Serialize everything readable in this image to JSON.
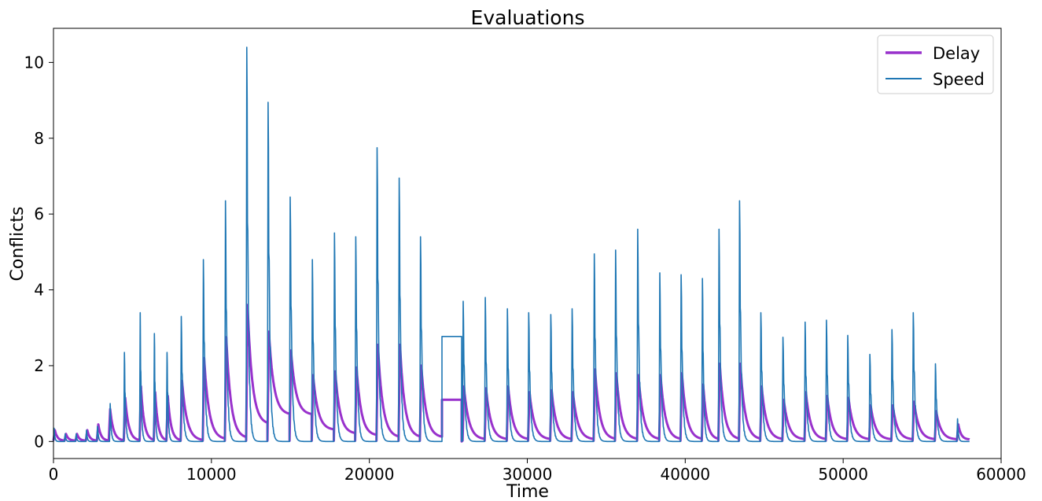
{
  "chart_data": {
    "type": "line",
    "title": "Evaluations",
    "xlabel": "Time",
    "ylabel": "Conflicts",
    "xlim": [
      0,
      60000
    ],
    "ylim": [
      -0.45,
      10.9
    ],
    "xticks": [
      0,
      10000,
      20000,
      30000,
      40000,
      50000,
      60000
    ],
    "yticks": [
      0,
      2,
      4,
      6,
      8,
      10
    ],
    "xtick_labels": [
      "0",
      "10000",
      "20000",
      "30000",
      "40000",
      "50000",
      "60000"
    ],
    "ytick_labels": [
      "0",
      "2",
      "4",
      "6",
      "8",
      "10"
    ],
    "grid": false,
    "legend_position": "top-right",
    "series": [
      {
        "name": "Delay",
        "color": "#9932cc",
        "linewidth": "thick",
        "episodes": [
          [
            0,
            0.3,
            0.02
          ],
          [
            700,
            0.2,
            0.02
          ],
          [
            1400,
            0.2,
            0.02
          ],
          [
            2050,
            0.3,
            0.02
          ],
          [
            2750,
            0.45,
            0.02
          ],
          [
            3500,
            0.85,
            0.02
          ],
          [
            4450,
            1.15,
            0.02
          ],
          [
            5450,
            1.45,
            0.02
          ],
          [
            6350,
            1.3,
            0.02
          ],
          [
            7150,
            1.2,
            0.02
          ],
          [
            8050,
            1.6,
            0.02
          ],
          [
            9450,
            2.2,
            0.05
          ],
          [
            10850,
            2.75,
            0.08
          ],
          [
            12200,
            3.6,
            0.45
          ],
          [
            13550,
            2.9,
            0.7
          ],
          [
            14950,
            2.4,
            0.7
          ],
          [
            16350,
            1.75,
            0.3
          ],
          [
            17750,
            1.85,
            0.2
          ],
          [
            19100,
            1.95,
            0.15
          ],
          [
            20450,
            2.55,
            0.1
          ],
          [
            21850,
            2.55,
            0.1
          ],
          [
            23200,
            2.0,
            0.1
          ],
          [
            24600,
            1.1,
            1.1
          ],
          [
            25900,
            1.45,
            0.05
          ],
          [
            27300,
            1.4,
            0.05
          ],
          [
            28700,
            1.45,
            0.05
          ],
          [
            30050,
            1.3,
            0.05
          ],
          [
            31450,
            1.35,
            0.05
          ],
          [
            32800,
            1.3,
            0.05
          ],
          [
            34200,
            1.9,
            0.05
          ],
          [
            35550,
            1.8,
            0.05
          ],
          [
            36950,
            1.75,
            0.05
          ],
          [
            38350,
            1.75,
            0.05
          ],
          [
            39700,
            1.8,
            0.05
          ],
          [
            41050,
            1.5,
            0.05
          ],
          [
            42100,
            2.05,
            0.05
          ],
          [
            43400,
            2.05,
            0.05
          ],
          [
            44750,
            1.45,
            0.05
          ],
          [
            46150,
            1.1,
            0.05
          ],
          [
            47550,
            1.3,
            0.05
          ],
          [
            48900,
            1.2,
            0.05
          ],
          [
            50250,
            1.15,
            0.05
          ],
          [
            51650,
            0.95,
            0.05
          ],
          [
            53050,
            0.95,
            0.05
          ],
          [
            54400,
            1.05,
            0.05
          ],
          [
            55800,
            0.8,
            0.05
          ],
          [
            57200,
            0.45,
            0.05
          ]
        ]
      },
      {
        "name": "Speed",
        "color": "#1f77b4",
        "linewidth": "thin",
        "episodes": [
          [
            0,
            0.35,
            0.0
          ],
          [
            700,
            0.2,
            0.0
          ],
          [
            1400,
            0.2,
            0.0
          ],
          [
            2050,
            0.3,
            0.0
          ],
          [
            2750,
            0.4,
            0.0
          ],
          [
            3550,
            1.0,
            0.0
          ],
          [
            4450,
            2.35,
            0.0
          ],
          [
            5450,
            3.4,
            0.0
          ],
          [
            6350,
            2.85,
            0.0
          ],
          [
            7150,
            2.35,
            0.0
          ],
          [
            8050,
            3.3,
            0.0
          ],
          [
            9450,
            4.8,
            0.0
          ],
          [
            10850,
            6.35,
            0.0
          ],
          [
            12200,
            10.4,
            0.0
          ],
          [
            13550,
            8.95,
            0.0
          ],
          [
            14950,
            6.45,
            0.0
          ],
          [
            16350,
            4.8,
            0.0
          ],
          [
            17750,
            5.5,
            0.0
          ],
          [
            19100,
            5.4,
            0.0
          ],
          [
            20450,
            7.75,
            0.0
          ],
          [
            21850,
            6.95,
            0.0
          ],
          [
            23200,
            5.4,
            0.0
          ],
          [
            24600,
            2.77,
            2.77
          ],
          [
            25900,
            3.7,
            0.0
          ],
          [
            27300,
            3.8,
            0.0
          ],
          [
            28700,
            3.5,
            0.0
          ],
          [
            30050,
            3.4,
            0.0
          ],
          [
            31450,
            3.35,
            0.0
          ],
          [
            32800,
            3.5,
            0.0
          ],
          [
            34200,
            4.95,
            0.0
          ],
          [
            35550,
            5.05,
            0.0
          ],
          [
            36950,
            5.6,
            0.0
          ],
          [
            38350,
            4.45,
            0.0
          ],
          [
            39700,
            4.4,
            0.0
          ],
          [
            41050,
            4.3,
            0.0
          ],
          [
            42100,
            5.6,
            0.0
          ],
          [
            43400,
            6.35,
            0.0
          ],
          [
            44750,
            3.4,
            0.0
          ],
          [
            46150,
            2.75,
            0.0
          ],
          [
            47550,
            3.15,
            0.0
          ],
          [
            48900,
            3.2,
            0.0
          ],
          [
            50250,
            2.8,
            0.0
          ],
          [
            51650,
            2.3,
            0.0
          ],
          [
            53050,
            2.95,
            0.0
          ],
          [
            54400,
            3.4,
            0.0
          ],
          [
            55800,
            2.05,
            0.0
          ],
          [
            57200,
            0.6,
            0.0
          ]
        ]
      }
    ],
    "data_end_x": 58000
  }
}
